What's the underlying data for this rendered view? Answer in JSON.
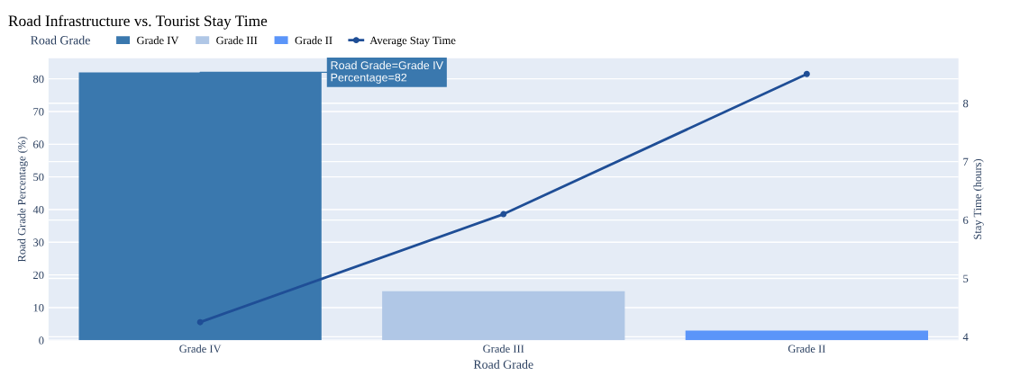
{
  "chart_data": {
    "type": "bar",
    "title": "Road Infrastructure vs. Tourist Stay Time",
    "xlabel": "Road Grade",
    "ylabel": "Road Grade Percentage (%)",
    "y2label": "Stay Time (hours)",
    "legend_title": "Road Grade",
    "categories": [
      "Grade IV",
      "Grade III",
      "Grade II"
    ],
    "series": [
      {
        "name": "Grade IV",
        "color": "#3a78ae",
        "values": [
          82,
          null,
          null
        ]
      },
      {
        "name": "Grade III",
        "color": "#b0c7e6",
        "values": [
          null,
          15,
          null
        ]
      },
      {
        "name": "Grade II",
        "color": "#5b95f9",
        "values": [
          null,
          null,
          3
        ]
      },
      {
        "name": "Average Stay Time",
        "type": "line",
        "axis": "y2",
        "color": "#1f4e96",
        "values": [
          4.25,
          6.1,
          8.5
        ],
        "marker": "circle",
        "line_style": "solid"
      }
    ],
    "ylim": [
      0,
      86.3
    ],
    "yticks": [
      0,
      10,
      20,
      30,
      40,
      50,
      60,
      70,
      80
    ],
    "y2lim": [
      3.94,
      8.77
    ],
    "y2ticks": [
      4,
      5,
      6,
      7,
      8
    ],
    "annotations": [
      {
        "text": "Road Grade=Grade IV\nPercentage=82",
        "x": "Grade IV",
        "y": 82
      }
    ],
    "grid": "y",
    "legend": "top"
  }
}
